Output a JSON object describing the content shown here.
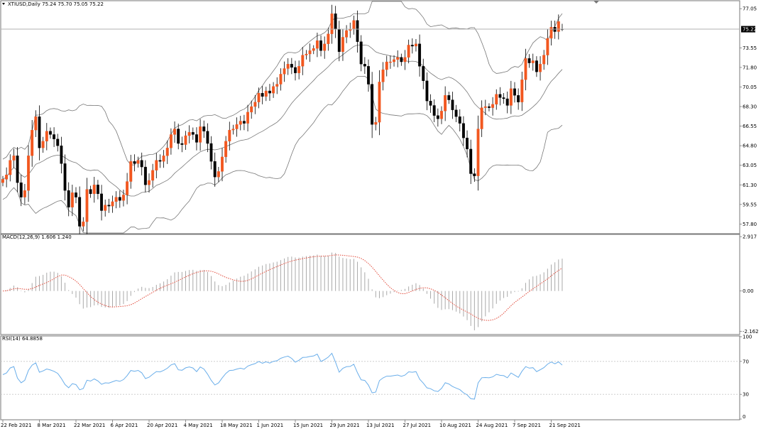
{
  "header": {
    "symbol_line": "XTIUSD,Daily  75.24 75.70 75.05 75.22"
  },
  "price_badge": "75.22",
  "colors": {
    "bull": "#f2571f",
    "bear": "#000000",
    "band": "#777777",
    "grid": "#c8c8c8",
    "macd_bar": "#a9a9a9",
    "macd_signal": "#e24a3a",
    "rsi": "#6aaeea",
    "badge_bg": "#000000",
    "badge_fg": "#ffffff"
  },
  "chart_data": [
    {
      "type": "candlestick",
      "pane": "price",
      "symbol": "XTIUSD",
      "timeframe": "Daily",
      "ylim": [
        57.0,
        77.7
      ],
      "yticks": [
        "77.05",
        "75.22",
        "73.55",
        "71.80",
        "70.05",
        "68.30",
        "66.55",
        "64.80",
        "63.05",
        "61.30",
        "59.55",
        "57.80"
      ],
      "xticks": [
        "22 Feb 2021",
        "8 Mar 2021",
        "22 Mar 2021",
        "6 Apr 2021",
        "20 Apr 2021",
        "4 May 2021",
        "18 May 2021",
        "1 Jun 2021",
        "15 Jun 2021",
        "29 Jun 2021",
        "13 Jul 2021",
        "27 Jul 2021",
        "10 Aug 2021",
        "24 Aug 2021",
        "7 Sep 2021",
        "21 Sep 2021"
      ],
      "current_price": 75.22,
      "last_ohlc": {
        "open": 75.24,
        "high": 75.7,
        "low": 75.05,
        "close": 75.22
      },
      "bollinger": "20,2",
      "close": [
        61.8,
        62.2,
        63.5,
        63.9,
        61.5,
        60.2,
        60.8,
        63.9,
        66.2,
        67.4,
        64.6,
        65.2,
        66.1,
        65.8,
        65.4,
        64.8,
        63.2,
        60.8,
        59.3,
        60.6,
        60.2,
        57.6,
        58.0,
        60.9,
        60.5,
        61.3,
        60.5,
        59.0,
        59.5,
        59.4,
        59.8,
        60.2,
        59.9,
        60.4,
        61.6,
        63.4,
        63.2,
        63.5,
        62.9,
        61.3,
        61.7,
        62.6,
        63.5,
        63.4,
        63.9,
        64.6,
        65.8,
        66.3,
        65.0,
        64.9,
        65.7,
        66.0,
        65.8,
        65.1,
        66.5,
        66.1,
        65.0,
        63.4,
        62.0,
        62.5,
        63.8,
        65.2,
        66.2,
        66.3,
        66.7,
        67.0,
        66.8,
        67.8,
        68.3,
        68.7,
        69.5,
        69.2,
        69.7,
        69.5,
        70.1,
        70.3,
        71.2,
        71.7,
        72.1,
        71.8,
        71.3,
        71.9,
        72.9,
        73.0,
        73.3,
        73.5,
        74.2,
        73.3,
        73.9,
        74.8,
        76.6,
        75.2,
        73.2,
        74.5,
        75.1,
        75.2,
        76.0,
        74.1,
        72.1,
        71.9,
        70.3,
        66.7,
        66.9,
        70.5,
        71.6,
        72.3,
        72.3,
        72.5,
        72.7,
        72.3,
        72.7,
        73.8,
        73.7,
        73.9,
        71.9,
        70.6,
        68.8,
        68.4,
        67.5,
        67.2,
        67.9,
        69.3,
        68.9,
        68.0,
        67.4,
        66.8,
        65.5,
        64.5,
        62.3,
        62.1,
        66.3,
        68.2,
        68.3,
        68.2,
        68.5,
        69.4,
        69.1,
        69.0,
        68.4,
        69.9,
        69.3,
        68.7,
        70.7,
        72.6,
        72.2,
        72.4,
        71.4,
        72.1,
        72.9,
        74.4,
        75.4,
        75.0,
        75.9,
        75.2
      ]
    },
    {
      "type": "histogram+line",
      "pane": "macd",
      "title": "MACD(12,26,9) 1.606 1.240",
      "params": "12,26,9",
      "macd_value": 1.606,
      "signal_value": 1.24,
      "ylim": [
        -2.3,
        3.0
      ],
      "yticks": [
        "2.917",
        "0.00",
        "-2.162"
      ]
    },
    {
      "type": "line",
      "pane": "rsi",
      "title": "RSI(14) 64.8858",
      "period": 14,
      "value": 64.8858,
      "ylim": [
        0,
        100
      ],
      "levels": [
        70,
        30
      ],
      "yticks": [
        "100",
        "70",
        "30",
        "0"
      ]
    }
  ]
}
